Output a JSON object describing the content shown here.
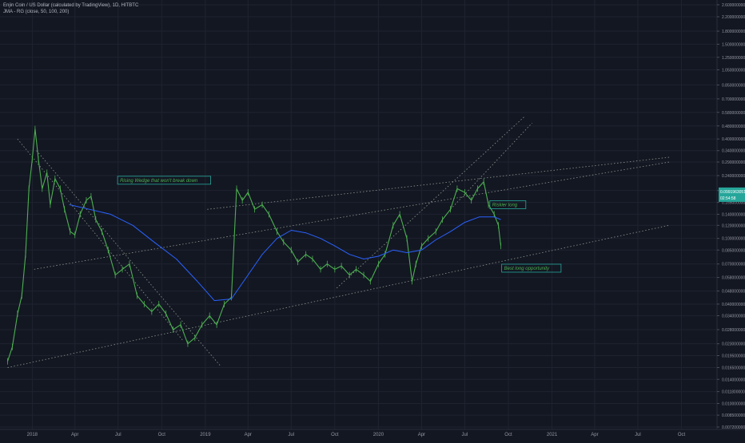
{
  "legend": {
    "symbol_line": "Enjin Coin / US Dollar (calculated by TradingView), 1D, HITBTC",
    "indicator_line": "JMA - RG (close, 50, 100, 200)"
  },
  "colors": {
    "background": "#131722",
    "grid": "#1f2330",
    "candle": "#4caf50",
    "ma": "#2962ff",
    "trendline": "#8c9a8c",
    "annotation_text": "#4caf50",
    "annotation_border": "#26a69a",
    "last_price_bg": "#26a69a",
    "axis_text": "#9598a1"
  },
  "chart_data": {
    "type": "line",
    "y_scale": "log",
    "ylim": [
      0.0072,
      2.6
    ],
    "xlim": [
      "2017-10-25",
      "2021-12-15"
    ],
    "x_ticks": [
      {
        "label": "2018",
        "date": "2018-01-01"
      },
      {
        "label": "Apr",
        "date": "2018-04-01"
      },
      {
        "label": "Jul",
        "date": "2018-07-01"
      },
      {
        "label": "Oct",
        "date": "2018-10-01"
      },
      {
        "label": "2019",
        "date": "2019-01-01"
      },
      {
        "label": "Apr",
        "date": "2019-04-01"
      },
      {
        "label": "Jul",
        "date": "2019-07-01"
      },
      {
        "label": "Oct",
        "date": "2019-10-01"
      },
      {
        "label": "2020",
        "date": "2020-01-01"
      },
      {
        "label": "Apr",
        "date": "2020-04-01"
      },
      {
        "label": "Jul",
        "date": "2020-07-01"
      },
      {
        "label": "Oct",
        "date": "2020-10-01"
      },
      {
        "label": "2021",
        "date": "2021-01-01"
      },
      {
        "label": "Apr",
        "date": "2021-04-01"
      },
      {
        "label": "Jul",
        "date": "2021-07-01"
      },
      {
        "label": "Oct",
        "date": "2021-10-01"
      }
    ],
    "y_ticks": [
      {
        "label": "2.6000000000",
        "value": 2.6
      },
      {
        "label": "2.2000000000",
        "value": 2.2
      },
      {
        "label": "1.8000000000",
        "value": 1.8
      },
      {
        "label": "1.5000000000",
        "value": 1.5
      },
      {
        "label": "1.2500000000",
        "value": 1.25
      },
      {
        "label": "1.0500000000",
        "value": 1.05
      },
      {
        "label": "0.8500000000",
        "value": 0.85
      },
      {
        "label": "0.7000000000",
        "value": 0.7
      },
      {
        "label": "0.5800000000",
        "value": 0.58
      },
      {
        "label": "0.4800000000",
        "value": 0.48
      },
      {
        "label": "0.4000000000",
        "value": 0.4
      },
      {
        "label": "0.3400000000",
        "value": 0.34
      },
      {
        "label": "0.2900000000",
        "value": 0.29
      },
      {
        "label": "0.2400000000",
        "value": 0.24
      },
      {
        "label": "0.1950000000",
        "value": 0.195
      },
      {
        "label": "0.1650000000",
        "value": 0.165
      },
      {
        "label": "0.1400000000",
        "value": 0.14
      },
      {
        "label": "0.1200000000",
        "value": 0.12
      },
      {
        "label": "0.1000000000",
        "value": 0.1
      },
      {
        "label": "0.0850000000",
        "value": 0.085
      },
      {
        "label": "0.0700000000",
        "value": 0.07
      },
      {
        "label": "0.0580000000",
        "value": 0.058
      },
      {
        "label": "0.0480000000",
        "value": 0.048
      },
      {
        "label": "0.0400000000",
        "value": 0.04
      },
      {
        "label": "0.0340000000",
        "value": 0.034
      },
      {
        "label": "0.0280000000",
        "value": 0.028
      },
      {
        "label": "0.0230000000",
        "value": 0.023
      },
      {
        "label": "0.0195000000",
        "value": 0.0195
      },
      {
        "label": "0.0165000000",
        "value": 0.0165
      },
      {
        "label": "0.0140000000",
        "value": 0.014
      },
      {
        "label": "0.0118000000",
        "value": 0.0118
      },
      {
        "label": "0.0100000000",
        "value": 0.01
      },
      {
        "label": "0.0085000000",
        "value": 0.0085
      },
      {
        "label": "0.0072000000",
        "value": 0.0072
      }
    ],
    "series": [
      {
        "values": [
          [
            "2017-11-10",
            0.018
          ],
          [
            "2017-11-20",
            0.022
          ],
          [
            "2017-12-01",
            0.035
          ],
          [
            "2017-12-10",
            0.045
          ],
          [
            "2017-12-18",
            0.08
          ],
          [
            "2017-12-25",
            0.2
          ],
          [
            "2018-01-01",
            0.3
          ],
          [
            "2018-01-07",
            0.46
          ],
          [
            "2018-01-14",
            0.3
          ],
          [
            "2018-01-22",
            0.2
          ],
          [
            "2018-02-01",
            0.25
          ],
          [
            "2018-02-08",
            0.16
          ],
          [
            "2018-02-18",
            0.23
          ],
          [
            "2018-03-01",
            0.2
          ],
          [
            "2018-03-10",
            0.15
          ],
          [
            "2018-03-22",
            0.11
          ],
          [
            "2018-04-01",
            0.105
          ],
          [
            "2018-04-12",
            0.14
          ],
          [
            "2018-04-25",
            0.17
          ],
          [
            "2018-05-05",
            0.18
          ],
          [
            "2018-05-15",
            0.13
          ],
          [
            "2018-05-28",
            0.11
          ],
          [
            "2018-06-10",
            0.085
          ],
          [
            "2018-06-25",
            0.06
          ],
          [
            "2018-07-10",
            0.065
          ],
          [
            "2018-07-25",
            0.07
          ],
          [
            "2018-08-10",
            0.045
          ],
          [
            "2018-08-25",
            0.04
          ],
          [
            "2018-09-10",
            0.036
          ],
          [
            "2018-09-25",
            0.04
          ],
          [
            "2018-10-10",
            0.035
          ],
          [
            "2018-10-25",
            0.028
          ],
          [
            "2018-11-10",
            0.03
          ],
          [
            "2018-11-25",
            0.023
          ],
          [
            "2018-12-10",
            0.025
          ],
          [
            "2018-12-25",
            0.03
          ],
          [
            "2019-01-10",
            0.034
          ],
          [
            "2019-01-25",
            0.03
          ],
          [
            "2019-02-10",
            0.04
          ],
          [
            "2019-02-25",
            0.044
          ],
          [
            "2019-03-08",
            0.2
          ],
          [
            "2019-03-20",
            0.17
          ],
          [
            "2019-04-01",
            0.19
          ],
          [
            "2019-04-15",
            0.15
          ],
          [
            "2019-05-01",
            0.16
          ],
          [
            "2019-05-15",
            0.14
          ],
          [
            "2019-06-01",
            0.11
          ],
          [
            "2019-06-15",
            0.095
          ],
          [
            "2019-07-01",
            0.085
          ],
          [
            "2019-07-15",
            0.072
          ],
          [
            "2019-08-01",
            0.08
          ],
          [
            "2019-08-15",
            0.075
          ],
          [
            "2019-09-01",
            0.065
          ],
          [
            "2019-09-15",
            0.07
          ],
          [
            "2019-10-01",
            0.065
          ],
          [
            "2019-10-15",
            0.068
          ],
          [
            "2019-11-01",
            0.06
          ],
          [
            "2019-11-15",
            0.065
          ],
          [
            "2019-12-01",
            0.06
          ],
          [
            "2019-12-15",
            0.055
          ],
          [
            "2020-01-01",
            0.07
          ],
          [
            "2020-01-15",
            0.08
          ],
          [
            "2020-02-01",
            0.12
          ],
          [
            "2020-02-15",
            0.14
          ],
          [
            "2020-03-01",
            0.1
          ],
          [
            "2020-03-12",
            0.055
          ],
          [
            "2020-03-20",
            0.07
          ],
          [
            "2020-04-01",
            0.09
          ],
          [
            "2020-04-15",
            0.1
          ],
          [
            "2020-05-01",
            0.11
          ],
          [
            "2020-05-15",
            0.13
          ],
          [
            "2020-06-01",
            0.15
          ],
          [
            "2020-06-15",
            0.2
          ],
          [
            "2020-07-01",
            0.19
          ],
          [
            "2020-07-15",
            0.17
          ],
          [
            "2020-07-28",
            0.2
          ],
          [
            "2020-08-10",
            0.22
          ],
          [
            "2020-08-20",
            0.16
          ],
          [
            "2020-09-01",
            0.14
          ],
          [
            "2020-09-10",
            0.12
          ],
          [
            "2020-09-15",
            0.09
          ]
        ]
      },
      {
        "values": [
          [
            "2018-03-20",
            0.16
          ],
          [
            "2018-05-01",
            0.15
          ],
          [
            "2018-06-15",
            0.14
          ],
          [
            "2018-08-01",
            0.12
          ],
          [
            "2018-09-15",
            0.095
          ],
          [
            "2018-11-01",
            0.075
          ],
          [
            "2018-12-15",
            0.055
          ],
          [
            "2019-01-20",
            0.042
          ],
          [
            "2019-02-25",
            0.043
          ],
          [
            "2019-04-01",
            0.06
          ],
          [
            "2019-05-01",
            0.08
          ],
          [
            "2019-06-01",
            0.1
          ],
          [
            "2019-07-01",
            0.112
          ],
          [
            "2019-08-01",
            0.108
          ],
          [
            "2019-09-01",
            0.1
          ],
          [
            "2019-10-01",
            0.09
          ],
          [
            "2019-11-01",
            0.08
          ],
          [
            "2019-12-01",
            0.075
          ],
          [
            "2020-01-01",
            0.078
          ],
          [
            "2020-02-01",
            0.085
          ],
          [
            "2020-03-01",
            0.082
          ],
          [
            "2020-04-01",
            0.085
          ],
          [
            "2020-05-01",
            0.098
          ],
          [
            "2020-06-01",
            0.11
          ],
          [
            "2020-07-01",
            0.125
          ],
          [
            "2020-08-01",
            0.135
          ],
          [
            "2020-09-01",
            0.135
          ],
          [
            "2020-09-15",
            0.13
          ]
        ]
      }
    ],
    "trendlines": [
      {
        "from": [
          "2018-01-05",
          0.065
        ],
        "to": [
          "2021-09-05",
          0.29
        ]
      },
      {
        "from": [
          "2017-11-10",
          0.0165
        ],
        "to": [
          "2021-09-05",
          0.12
        ]
      },
      {
        "from": [
          "2017-12-01",
          0.4
        ],
        "to": [
          "2018-11-15",
          0.024
        ]
      },
      {
        "from": [
          "2018-01-10",
          0.34
        ],
        "to": [
          "2019-02-01",
          0.017
        ]
      },
      {
        "from": [
          "2019-01-05",
          0.15
        ],
        "to": [
          "2021-09-05",
          0.31
        ]
      },
      {
        "from": [
          "2019-10-05",
          0.05
        ],
        "to": [
          "2020-11-05",
          0.55
        ]
      },
      {
        "from": [
          "2020-06-01",
          0.15
        ],
        "to": [
          "2020-11-20",
          0.5
        ]
      }
    ],
    "annotations": [
      {
        "text": "Rising Wedge that won't break down",
        "at": [
          "2018-07-05",
          0.225
        ]
      },
      {
        "text": "Riskier long",
        "at": [
          "2020-08-28",
          0.16
        ]
      },
      {
        "text": "Best long opportunity",
        "at": [
          "2020-09-22",
          0.066
        ]
      }
    ],
    "last_price": {
      "value": 0.184,
      "labels": [
        "0.0991963051",
        "02:54:58"
      ]
    }
  }
}
